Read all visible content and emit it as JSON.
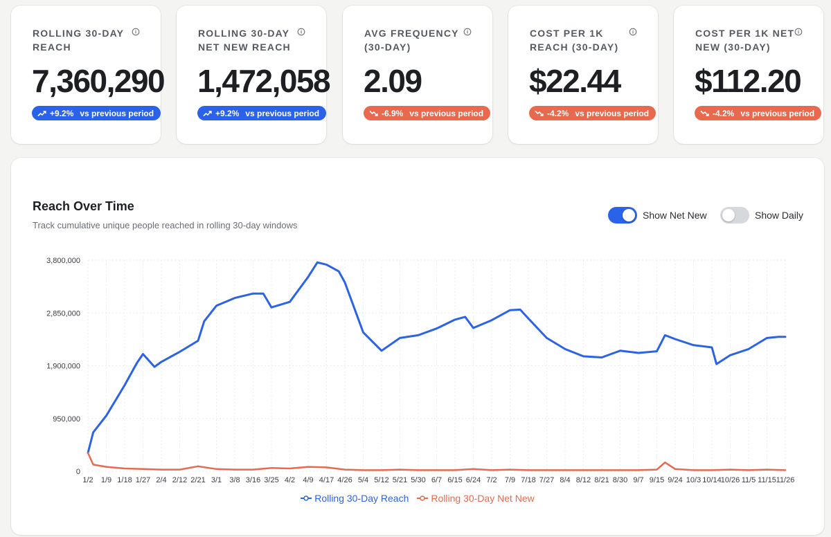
{
  "kpis": [
    {
      "title": "ROLLING 30-DAY REACH",
      "value": "7,360,290",
      "delta": "+9.2%",
      "vs": "vs previous period",
      "trend": "up",
      "color": "#2b63e8"
    },
    {
      "title": "ROLLING 30-DAY NET NEW REACH",
      "value": "1,472,058",
      "delta": "+9.2%",
      "vs": "vs previous period",
      "trend": "up",
      "color": "#2b63e8"
    },
    {
      "title": "AVG FREQUENCY (30-DAY)",
      "value": "2.09",
      "delta": "-6.9%",
      "vs": "vs previous period",
      "trend": "down",
      "color": "#e9694e"
    },
    {
      "title": "COST PER 1K REACH (30-DAY)",
      "value": "$22.44",
      "delta": "-4.2%",
      "vs": "vs previous period",
      "trend": "down",
      "color": "#e9694e"
    },
    {
      "title": "COST PER 1K NET NEW (30-DAY)",
      "value": "$112.20",
      "delta": "-4.2%",
      "vs": "vs previous period",
      "trend": "down",
      "color": "#e9694e"
    }
  ],
  "chart_section": {
    "title": "Reach Over Time",
    "subtitle": "Track cumulative unique people reached in rolling 30-day windows",
    "toggles": [
      {
        "label": "Show Net New",
        "on": true
      },
      {
        "label": "Show Daily",
        "on": false
      }
    ]
  },
  "colors": {
    "reach": "#2b63e8",
    "net_new": "#e9694e",
    "toggle_on": "#2b63e8",
    "toggle_off": "#d6d9dc"
  },
  "icons": {
    "info": "info-circle-icon",
    "trend_up": "trend-up-icon",
    "trend_down": "trend-down-icon"
  },
  "chart_data": {
    "type": "line",
    "x_tick_labels": [
      "1/2",
      "1/9",
      "1/18",
      "1/27",
      "2/4",
      "2/12",
      "2/21",
      "3/1",
      "3/8",
      "3/16",
      "3/25",
      "4/2",
      "4/9",
      "4/17",
      "4/26",
      "5/4",
      "5/12",
      "5/21",
      "5/30",
      "6/7",
      "6/15",
      "6/24",
      "7/2",
      "7/9",
      "7/18",
      "7/27",
      "8/4",
      "8/12",
      "8/21",
      "8/30",
      "9/7",
      "9/15",
      "9/24",
      "10/3",
      "10/14",
      "10/26",
      "11/5",
      "11/15",
      "11/26"
    ],
    "y_ticks": [
      0,
      950000,
      1900000,
      2850000,
      3800000
    ],
    "y_tick_labels": [
      "0",
      "950,000",
      "1,900,000",
      "2,850,000",
      "3,800,000"
    ],
    "ylim": [
      0,
      3800000
    ],
    "grid": true,
    "legend_position": "bottom",
    "series": [
      {
        "name": "Rolling 30-Day Reach",
        "color": "#2b63e8",
        "points": [
          [
            "1/2",
            330000
          ],
          [
            "1/4",
            700000
          ],
          [
            "1/9",
            1000000
          ],
          [
            "1/18",
            1550000
          ],
          [
            "1/24",
            1950000
          ],
          [
            "1/27",
            2110000
          ],
          [
            "2/1",
            1880000
          ],
          [
            "2/4",
            1970000
          ],
          [
            "2/12",
            2150000
          ],
          [
            "2/21",
            2350000
          ],
          [
            "2/24",
            2700000
          ],
          [
            "3/1",
            2980000
          ],
          [
            "3/8",
            3120000
          ],
          [
            "3/16",
            3200000
          ],
          [
            "3/21",
            3200000
          ],
          [
            "3/25",
            2950000
          ],
          [
            "4/2",
            3050000
          ],
          [
            "4/9",
            3500000
          ],
          [
            "4/13",
            3760000
          ],
          [
            "4/17",
            3720000
          ],
          [
            "4/23",
            3600000
          ],
          [
            "4/26",
            3400000
          ],
          [
            "5/4",
            2500000
          ],
          [
            "5/12",
            2170000
          ],
          [
            "5/21",
            2400000
          ],
          [
            "5/30",
            2450000
          ],
          [
            "6/7",
            2570000
          ],
          [
            "6/15",
            2730000
          ],
          [
            "6/20",
            2780000
          ],
          [
            "6/24",
            2580000
          ],
          [
            "7/2",
            2720000
          ],
          [
            "7/9",
            2900000
          ],
          [
            "7/14",
            2910000
          ],
          [
            "7/18",
            2750000
          ],
          [
            "7/27",
            2400000
          ],
          [
            "8/4",
            2200000
          ],
          [
            "8/12",
            2070000
          ],
          [
            "8/21",
            2050000
          ],
          [
            "8/30",
            2170000
          ],
          [
            "9/7",
            2130000
          ],
          [
            "9/15",
            2160000
          ],
          [
            "9/19",
            2450000
          ],
          [
            "9/24",
            2380000
          ],
          [
            "10/3",
            2270000
          ],
          [
            "10/14",
            2230000
          ],
          [
            "10/17",
            1930000
          ],
          [
            "10/26",
            2090000
          ],
          [
            "11/5",
            2200000
          ],
          [
            "11/15",
            2400000
          ],
          [
            "11/22",
            2420000
          ],
          [
            "11/26",
            2420000
          ]
        ]
      },
      {
        "name": "Rolling 30-Day Net New",
        "color": "#e9694e",
        "points": [
          [
            "1/2",
            330000
          ],
          [
            "1/4",
            120000
          ],
          [
            "1/9",
            80000
          ],
          [
            "1/18",
            50000
          ],
          [
            "1/27",
            40000
          ],
          [
            "2/4",
            30000
          ],
          [
            "2/12",
            30000
          ],
          [
            "2/21",
            90000
          ],
          [
            "3/1",
            40000
          ],
          [
            "3/8",
            30000
          ],
          [
            "3/16",
            30000
          ],
          [
            "3/25",
            60000
          ],
          [
            "4/2",
            50000
          ],
          [
            "4/9",
            80000
          ],
          [
            "4/17",
            70000
          ],
          [
            "4/26",
            30000
          ],
          [
            "5/4",
            20000
          ],
          [
            "5/12",
            20000
          ],
          [
            "5/21",
            30000
          ],
          [
            "5/30",
            20000
          ],
          [
            "6/7",
            20000
          ],
          [
            "6/15",
            20000
          ],
          [
            "6/24",
            40000
          ],
          [
            "7/2",
            20000
          ],
          [
            "7/9",
            30000
          ],
          [
            "7/18",
            20000
          ],
          [
            "7/27",
            20000
          ],
          [
            "8/4",
            20000
          ],
          [
            "8/12",
            20000
          ],
          [
            "8/21",
            20000
          ],
          [
            "8/30",
            20000
          ],
          [
            "9/7",
            20000
          ],
          [
            "9/15",
            30000
          ],
          [
            "9/19",
            160000
          ],
          [
            "9/24",
            40000
          ],
          [
            "10/3",
            20000
          ],
          [
            "10/14",
            20000
          ],
          [
            "10/26",
            30000
          ],
          [
            "11/5",
            20000
          ],
          [
            "11/15",
            30000
          ],
          [
            "11/26",
            20000
          ]
        ]
      }
    ]
  }
}
